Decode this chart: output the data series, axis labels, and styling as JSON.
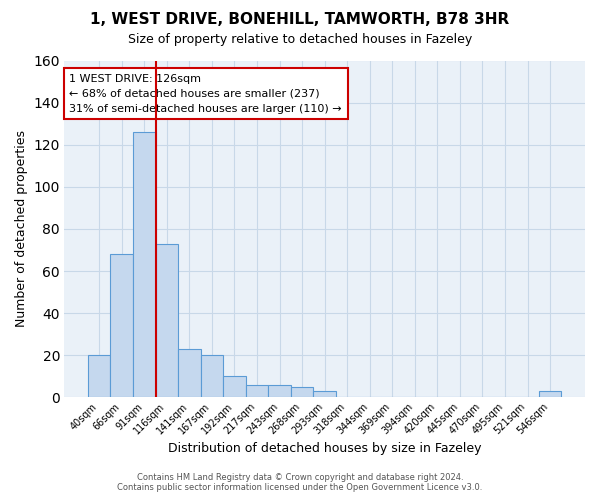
{
  "title": "1, WEST DRIVE, BONEHILL, TAMWORTH, B78 3HR",
  "subtitle": "Size of property relative to detached houses in Fazeley",
  "xlabel": "Distribution of detached houses by size in Fazeley",
  "ylabel": "Number of detached properties",
  "bar_labels": [
    "40sqm",
    "66sqm",
    "91sqm",
    "116sqm",
    "141sqm",
    "167sqm",
    "192sqm",
    "217sqm",
    "243sqm",
    "268sqm",
    "293sqm",
    "318sqm",
    "344sqm",
    "369sqm",
    "394sqm",
    "420sqm",
    "445sqm",
    "470sqm",
    "495sqm",
    "521sqm",
    "546sqm"
  ],
  "bar_values": [
    20,
    68,
    126,
    73,
    23,
    20,
    10,
    6,
    6,
    5,
    3,
    0,
    0,
    0,
    0,
    0,
    0,
    0,
    0,
    0,
    3
  ],
  "bar_color": "#c5d8ee",
  "bar_edge_color": "#5b9bd5",
  "vline_x_index": 2,
  "vline_color": "#cc0000",
  "ylim": [
    0,
    160
  ],
  "yticks": [
    0,
    20,
    40,
    60,
    80,
    100,
    120,
    140,
    160
  ],
  "annotation_title": "1 WEST DRIVE: 126sqm",
  "annotation_line1": "← 68% of detached houses are smaller (237)",
  "annotation_line2": "31% of semi-detached houses are larger (110) →",
  "annotation_box_color": "#ffffff",
  "annotation_box_edge": "#cc0000",
  "footer_line1": "Contains HM Land Registry data © Crown copyright and database right 2024.",
  "footer_line2": "Contains public sector information licensed under the Open Government Licence v3.0.",
  "plot_bg_color": "#eaf1f8",
  "fig_bg_color": "#ffffff",
  "grid_color": "#c8d8e8"
}
